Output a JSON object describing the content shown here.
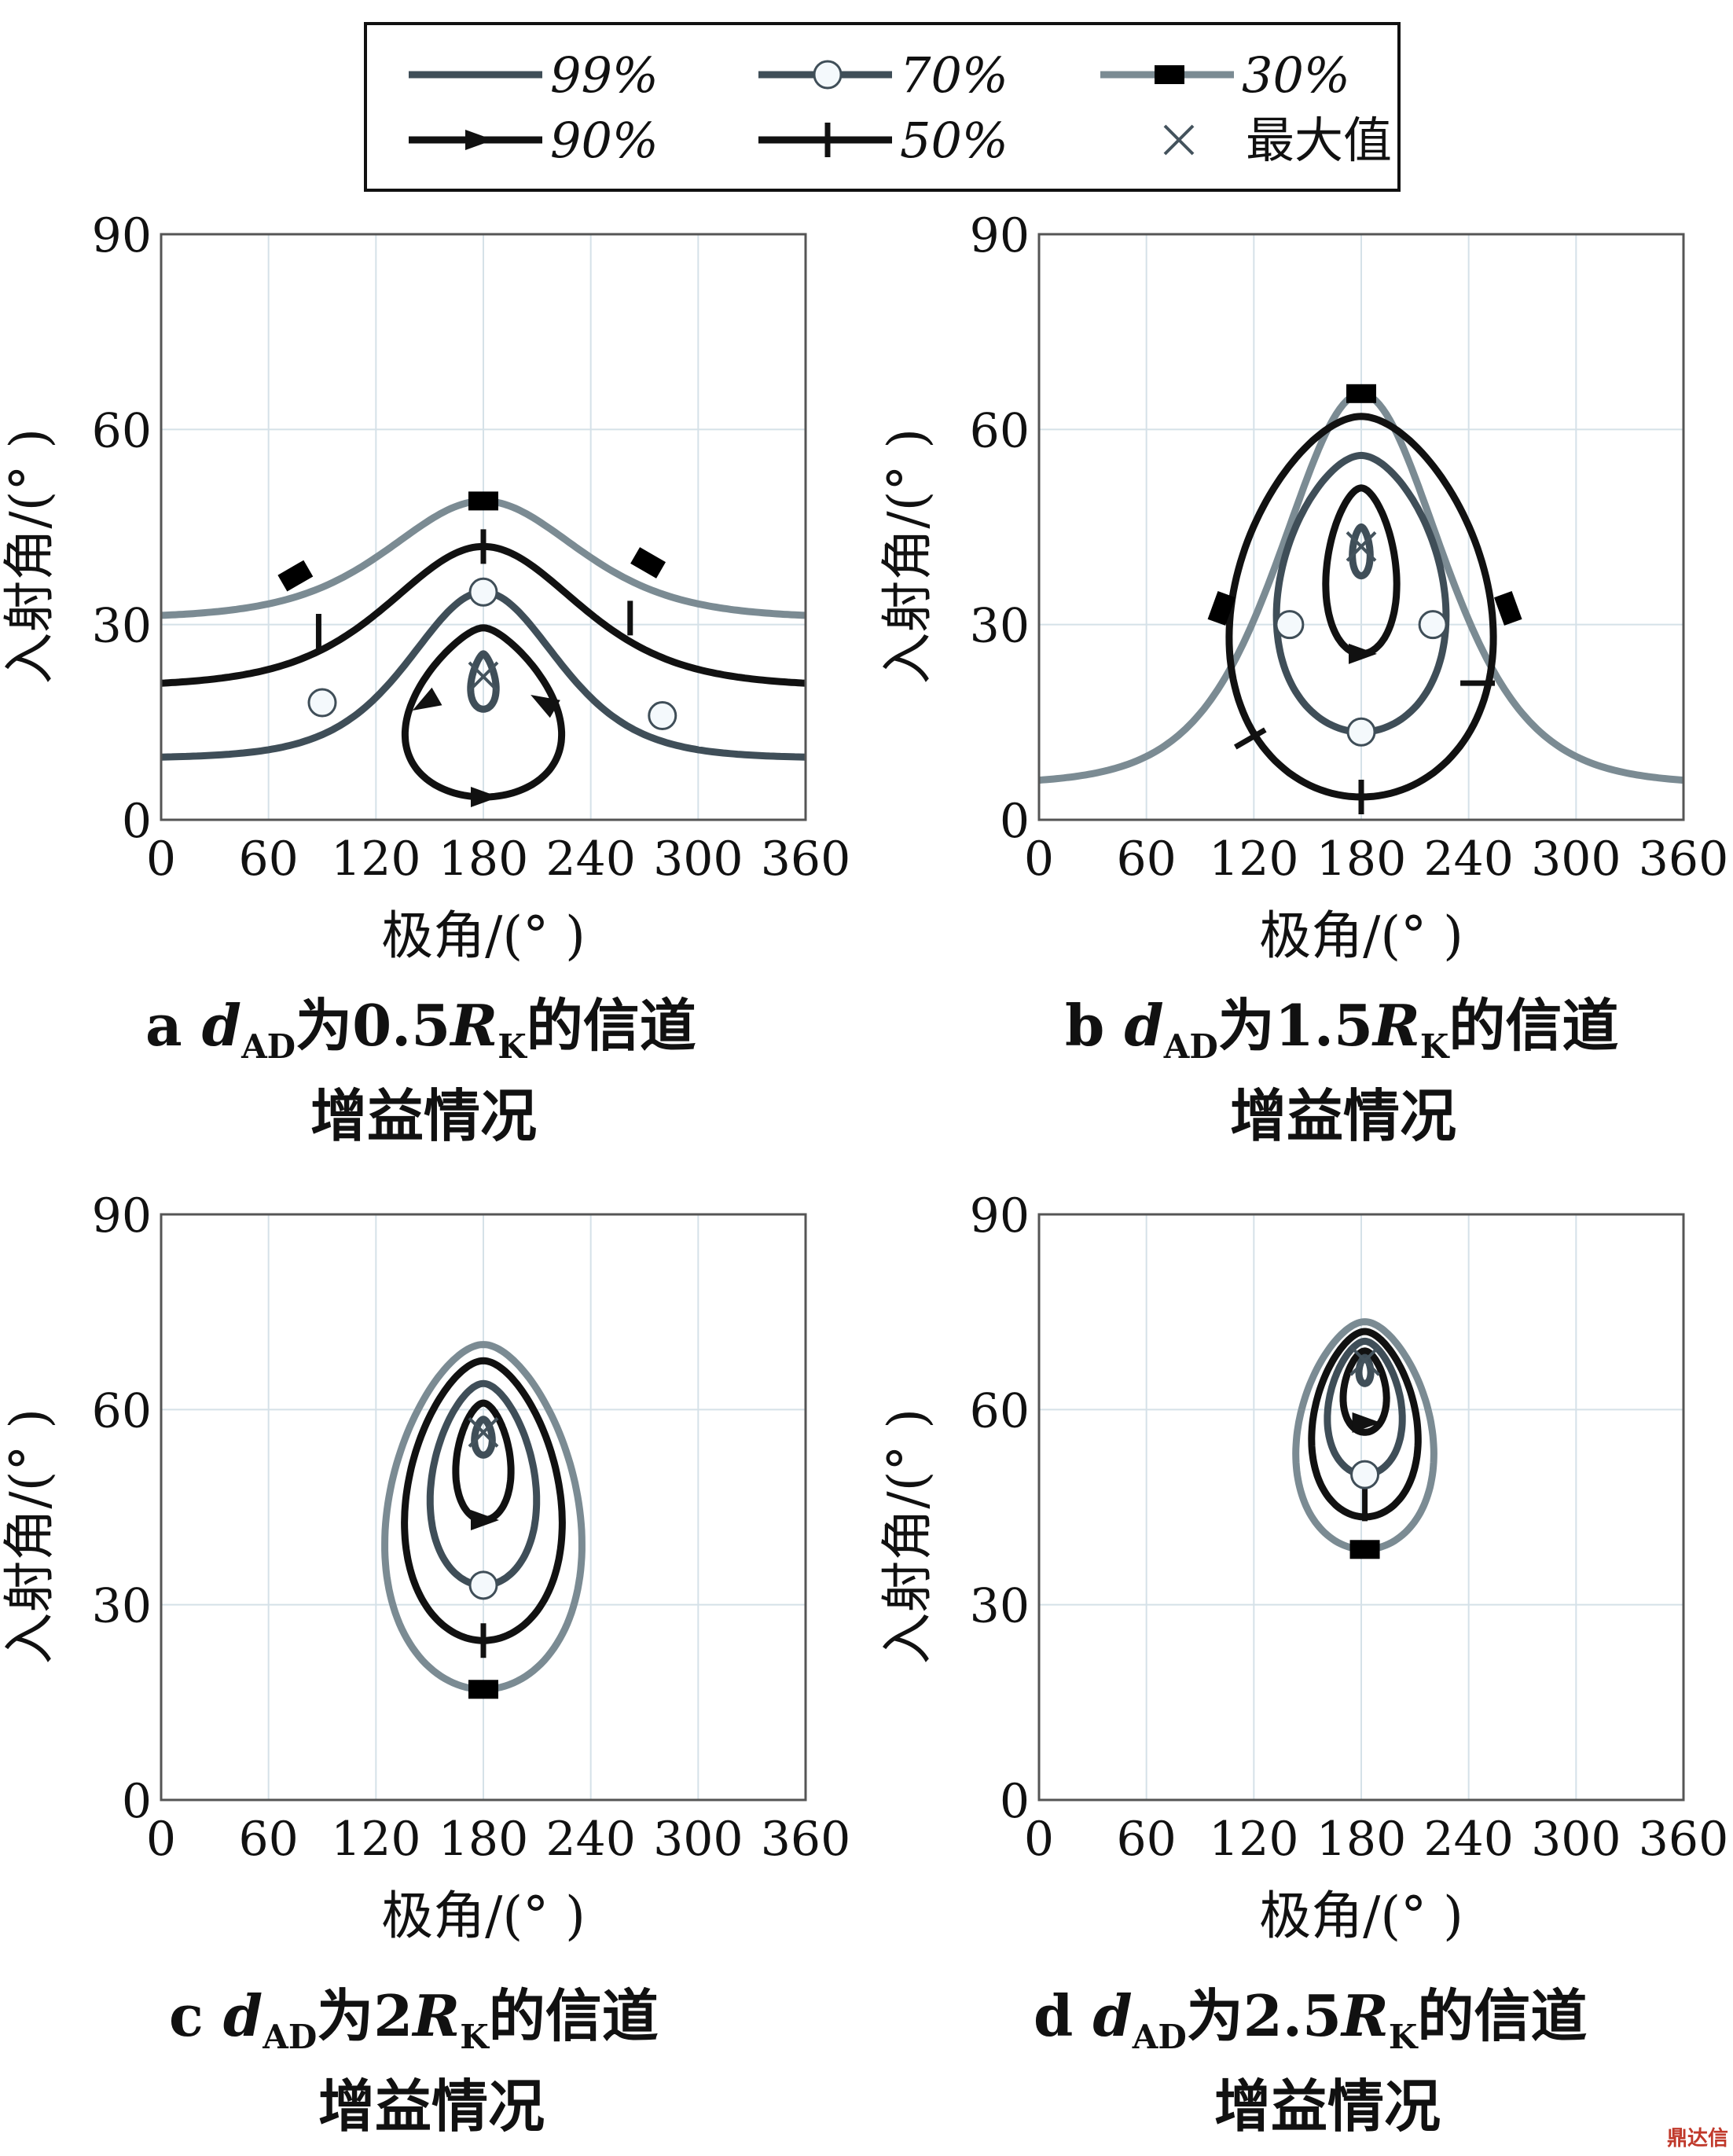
{
  "legend": {
    "items": [
      {
        "label": "99%",
        "marker": "none",
        "color": "#3f4e58"
      },
      {
        "label": "70%",
        "marker": "circle",
        "color": "#3f4e58"
      },
      {
        "label": "30%",
        "marker": "square",
        "color": "#7b8b93"
      },
      {
        "label": "90%",
        "marker": "triangle",
        "color": "#111111"
      },
      {
        "label": "50%",
        "marker": "tick",
        "color": "#111111"
      },
      {
        "label": "最大值",
        "marker": "cross",
        "color": "#44535d"
      }
    ]
  },
  "watermark": "鼎达信",
  "chart_data": [
    {
      "type": "line",
      "panel": "a",
      "caption": {
        "letter": "a",
        "d": "d",
        "sub": "AD",
        "pre": "为0.5",
        "R": "R",
        "rsub": "K",
        "post": "的信道",
        "line2": "增益情况"
      },
      "xlabel": "极角/(° )",
      "ylabel": "入射角/(° )",
      "xlim": [
        0,
        360
      ],
      "ylim": [
        0,
        90
      ],
      "xticks": [
        "0",
        "60",
        "120",
        "180",
        "240",
        "300",
        "360"
      ],
      "yticks": [
        "0",
        "30",
        "60",
        "90"
      ],
      "grid": true,
      "series": [
        {
          "name": "30%",
          "kind": "bump",
          "base": 31,
          "peak": 49,
          "width": 70,
          "markers": [
            [
              75,
              37.5
            ],
            [
              180,
              49
            ],
            [
              272,
              39.5
            ]
          ]
        },
        {
          "name": "50%",
          "kind": "bump",
          "base": 20.5,
          "peak": 42,
          "width": 70,
          "markers": [
            [
              88,
              29
            ],
            [
              180,
              42
            ],
            [
              262,
              31
            ]
          ]
        },
        {
          "name": "70%",
          "kind": "bump",
          "base": 9.5,
          "peak": 35,
          "width": 55,
          "markers": [
            [
              90,
              18
            ],
            [
              180,
              35
            ],
            [
              280,
              16
            ]
          ]
        },
        {
          "name": "90%",
          "kind": "teardrop",
          "cx": 180,
          "ytop": 29.5,
          "ybot": 3.5,
          "w": 43,
          "markers": [
            [
              148,
              18,
              150
            ],
            [
              180,
              3.5,
              0
            ],
            [
              214,
              18,
              210
            ]
          ]
        },
        {
          "name": "99%",
          "kind": "teardrop",
          "cx": 180,
          "ytop": 25.5,
          "ybot": 17,
          "w": 7,
          "markers": []
        }
      ],
      "max_point": [
        180,
        22
      ]
    },
    {
      "type": "line",
      "panel": "b",
      "caption": {
        "letter": "b",
        "d": "d",
        "sub": "AD",
        "pre": "为1.5",
        "R": "R",
        "rsub": "K",
        "post": "的信道",
        "line2": "增益情况"
      },
      "xlabel": "极角/(° )",
      "ylabel": "入射角/(° )",
      "xlim": [
        0,
        360
      ],
      "ylim": [
        0,
        90
      ],
      "xticks": [
        "0",
        "60",
        "120",
        "180",
        "240",
        "300",
        "360"
      ],
      "yticks": [
        "0",
        "30",
        "60",
        "90"
      ],
      "grid": true,
      "series": [
        {
          "name": "30%",
          "kind": "bump",
          "base": 5.5,
          "peak": 65.5,
          "width": 60,
          "markers": [
            [
              102,
              32.5
            ],
            [
              180,
              65.5
            ],
            [
              262,
              32.5
            ]
          ]
        },
        {
          "name": "50%",
          "kind": "oval",
          "cx": 180,
          "ytop": 62,
          "ybot": 3.5,
          "w": 67,
          "markers": [
            [
              118,
              12.5
            ],
            [
              180,
              3.5
            ],
            [
              245,
              21
            ]
          ]
        },
        {
          "name": "70%",
          "kind": "oval",
          "cx": 180,
          "ytop": 56,
          "ybot": 13.5,
          "w": 43,
          "markers": [
            [
              140,
              30
            ],
            [
              180,
              13.5
            ],
            [
              220,
              30
            ]
          ]
        },
        {
          "name": "90%",
          "kind": "oval",
          "cx": 180,
          "ytop": 51,
          "ybot": 25.5,
          "w": 18,
          "markers": [
            [
              180,
              25.5,
              0
            ]
          ]
        },
        {
          "name": "99%",
          "kind": "oval",
          "cx": 180,
          "ytop": 45,
          "ybot": 37.5,
          "w": 4.5,
          "markers": []
        }
      ],
      "max_point": [
        180,
        42
      ]
    },
    {
      "type": "line",
      "panel": "c",
      "caption": {
        "letter": "c",
        "d": "d",
        "sub": "AD",
        "pre": "为2",
        "R": "R",
        "rsub": "K",
        "post": "的信道",
        "line2": "增益情况"
      },
      "xlabel": "极角/(° )",
      "ylabel": "入射角/(° )",
      "xlim": [
        0,
        360
      ],
      "ylim": [
        0,
        90
      ],
      "xticks": [
        "0",
        "60",
        "120",
        "180",
        "240",
        "300",
        "360"
      ],
      "yticks": [
        "0",
        "30",
        "60",
        "90"
      ],
      "grid": true,
      "series": [
        {
          "name": "30%",
          "kind": "oval",
          "cx": 180,
          "ytop": 70,
          "ybot": 17,
          "w": 50,
          "markers": [
            [
              180,
              17
            ]
          ]
        },
        {
          "name": "50%",
          "kind": "oval",
          "cx": 180,
          "ytop": 67.5,
          "ybot": 24.5,
          "w": 40,
          "markers": [
            [
              180,
              24.5
            ]
          ]
        },
        {
          "name": "70%",
          "kind": "oval",
          "cx": 180,
          "ytop": 64,
          "ybot": 33,
          "w": 27,
          "markers": [
            [
              180,
              33
            ]
          ]
        },
        {
          "name": "90%",
          "kind": "oval",
          "cx": 180,
          "ytop": 61,
          "ybot": 43,
          "w": 14,
          "markers": [
            [
              180,
              43,
              0
            ]
          ]
        },
        {
          "name": "99%",
          "kind": "oval",
          "cx": 180,
          "ytop": 58.5,
          "ybot": 53,
          "w": 4.5,
          "markers": []
        }
      ],
      "max_point": [
        180,
        56.5
      ]
    },
    {
      "type": "line",
      "panel": "d",
      "caption": {
        "letter": "d",
        "d": "d",
        "sub": "AD",
        "pre": "为2.5",
        "R": "R",
        "rsub": "K",
        "post": "的信道",
        "line2": "增益情况"
      },
      "xlabel": "极角/(° )",
      "ylabel": "入射角/(° )",
      "xlim": [
        0,
        360
      ],
      "ylim": [
        0,
        90
      ],
      "xticks": [
        "0",
        "60",
        "120",
        "180",
        "240",
        "300",
        "360"
      ],
      "yticks": [
        "0",
        "30",
        "60",
        "90"
      ],
      "grid": true,
      "series": [
        {
          "name": "30%",
          "kind": "oval",
          "cx": 182,
          "ytop": 73.5,
          "ybot": 38.5,
          "w": 35,
          "markers": [
            [
              182,
              38.5
            ]
          ]
        },
        {
          "name": "50%",
          "kind": "oval",
          "cx": 182,
          "ytop": 72,
          "ybot": 43.5,
          "w": 27,
          "markers": [
            [
              182,
              45.5
            ]
          ]
        },
        {
          "name": "70%",
          "kind": "oval",
          "cx": 182,
          "ytop": 70.5,
          "ybot": 50,
          "w": 19,
          "markers": [
            [
              182,
              50
            ]
          ]
        },
        {
          "name": "90%",
          "kind": "oval",
          "cx": 182,
          "ytop": 69,
          "ybot": 56.5,
          "w": 11,
          "markers": [
            [
              182,
              58,
              0
            ]
          ]
        },
        {
          "name": "99%",
          "kind": "oval",
          "cx": 182,
          "ytop": 68,
          "ybot": 64,
          "w": 3,
          "markers": []
        }
      ],
      "max_point": [
        182,
        67.5
      ]
    }
  ]
}
